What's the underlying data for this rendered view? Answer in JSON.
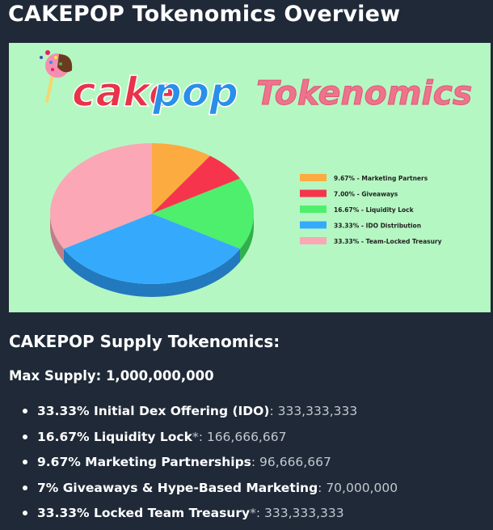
{
  "page_title": "CAKEPOP Tokenomics Overview",
  "banner": {
    "brand_cake": "cake",
    "brand_pop": "pop",
    "heading": "Tokenomics",
    "colors": {
      "background": "#b5f7c2",
      "cake_red": "#e8334a",
      "pop_blue": "#2a8fe8",
      "heading_pink": "#f0728c"
    }
  },
  "chart_data": {
    "type": "pie",
    "title": "",
    "slices": [
      {
        "label": "9.67% - Marketing Partners",
        "value": 9.67,
        "color": "#fbab3f",
        "side_color": "#d08a2a"
      },
      {
        "label": "7.00% - Giveaways",
        "value": 7.0,
        "color": "#f6354d",
        "side_color": "#c8263b"
      },
      {
        "label": "16.67% - Liquidity Lock",
        "value": 16.67,
        "color": "#4eef6c",
        "side_color": "#2fb04b"
      },
      {
        "label": "33.33% - IDO Distribution",
        "value": 33.33,
        "color": "#35aafd",
        "side_color": "#2379bd"
      },
      {
        "label": "33.33% - Team-Locked Treasury",
        "value": 33.33,
        "color": "#fba7b6",
        "side_color": "#c07d8a"
      }
    ],
    "legend_position": "right"
  },
  "section_heading": "CAKEPOP Supply Tokenomics:",
  "max_supply": "Max Supply: 1,000,000,000",
  "allocations": [
    {
      "label": "33.33% Initial Dex Offering (IDO)",
      "suffix": "",
      "value": ": 333,333,333"
    },
    {
      "label": "16.67% Liquidity Lock",
      "suffix": "*",
      "value": ": 166,666,667"
    },
    {
      "label": "9.67% Marketing Partnerships",
      "suffix": "",
      "value": ": 96,666,667"
    },
    {
      "label": "7% Giveaways & Hype-Based Marketing",
      "suffix": "",
      "value": ": 70,000,000"
    },
    {
      "label": "33.33% Locked Team Treasury",
      "suffix": "*",
      "value": ": 333,333,333"
    }
  ]
}
